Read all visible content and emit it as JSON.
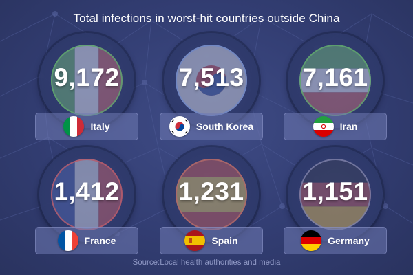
{
  "title": "Total infections in worst-hit countries outside China",
  "source": "Source:Local health authorities and media",
  "countries": [
    {
      "name": "Italy",
      "value": "9,172",
      "flag": "italy-flag-icon"
    },
    {
      "name": "South Korea",
      "value": "7,513",
      "flag": "south-korea-flag-icon"
    },
    {
      "name": "Iran",
      "value": "7,161",
      "flag": "iran-flag-icon"
    },
    {
      "name": "France",
      "value": "1,412",
      "flag": "france-flag-icon"
    },
    {
      "name": "Spain",
      "value": "1,231",
      "flag": "spain-flag-icon"
    },
    {
      "name": "Germany",
      "value": "1,151",
      "flag": "germany-flag-icon"
    }
  ],
  "colors": {
    "background": "#323d72",
    "ring_accent": "#5fa46f",
    "label_bg": "#707ab2",
    "source_text": "#8e97c4"
  }
}
